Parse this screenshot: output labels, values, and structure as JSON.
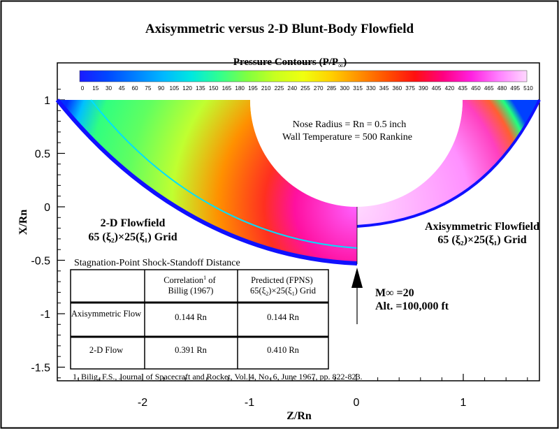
{
  "chart_data": {
    "type": "contour",
    "title": "Axisymmetric versus 2-D Blunt-Body Flowfield",
    "xlabel": "Z/Rn",
    "ylabel": "X/Rn",
    "xlim": [
      -2.8,
      1.72
    ],
    "ylim": [
      -1.72,
      1.25
    ],
    "x_ticks": [
      {
        "v": -2,
        "label": "-2"
      },
      {
        "v": -1,
        "label": "-1"
      },
      {
        "v": 0,
        "label": "0"
      },
      {
        "v": 1,
        "label": "1"
      }
    ],
    "y_ticks": [
      {
        "v": 1,
        "label": "1"
      },
      {
        "v": 0.5,
        "label": "0.5"
      },
      {
        "v": 0,
        "label": "0"
      },
      {
        "v": -0.5,
        "label": "-0.5"
      },
      {
        "v": -1,
        "label": "-1"
      },
      {
        "v": -1.5,
        "label": "-1.5"
      }
    ],
    "colorbar": {
      "title": "Pressure Contours (P/P",
      "title_sub": "∞",
      "title_close": ")",
      "min": 0,
      "max": 510,
      "tick_labels": [
        "0",
        "15",
        "30",
        "45",
        "60",
        "75",
        "90",
        "105",
        "120",
        "135",
        "150",
        "165",
        "180",
        "195",
        "210",
        "225",
        "240",
        "255",
        "270",
        "285",
        "300",
        "315",
        "330",
        "345",
        "360",
        "375",
        "390",
        "405",
        "420",
        "435",
        "450",
        "465",
        "480",
        "495",
        "510"
      ],
      "colors": [
        "#1a1aff",
        "#0048ff",
        "#0080ff",
        "#00b8ff",
        "#00e8e0",
        "#30ff90",
        "#80ff40",
        "#c8ff20",
        "#f0ff10",
        "#ffd000",
        "#ff9000",
        "#ff5000",
        "#ff1010",
        "#ff0080",
        "#ff20e0",
        "#ff80ff",
        "#ffd8ff"
      ]
    },
    "annotations": {
      "nose_radius": "Nose Radius = Rn = 0.5 inch",
      "wall_temperature": "Wall Temperature = 500 Rankine",
      "left_label_title": "2-D Flowfield",
      "left_label_grid": "65 (ξ₂)×25(ξ₁) Grid",
      "right_label_title": "Axisymmetric Flowfield",
      "right_label_grid": "65 (ξ₂)×25(ξ₁) Grid",
      "mach": "M∞ =20",
      "altitude": "Alt. =100,000 ft"
    },
    "table": {
      "title": "Stagnation-Point Shock-Standoff Distance",
      "headers": [
        "",
        "Correlation¹ of Billig (1967)",
        "Predicted (FPNS) 65(ξ₂)×25(ξ₁) Grid"
      ],
      "rows": [
        {
          "label": "Axisymmetric Flow",
          "values": [
            "0.144 Rn",
            "0.144 Rn"
          ]
        },
        {
          "label": "2-D Flow",
          "values": [
            "0.391 Rn",
            "0.410 Rn"
          ]
        }
      ]
    },
    "footnote": "1. Bilig, F.S., Journal of Spacecraft and Rocket, Vol. 4, No. 6, June 1967, pp. 822-823.",
    "flowfields": [
      {
        "name": "2-D Flowfield",
        "side": "left",
        "body_radius": 0.5,
        "shock_standoff": 0.41
      },
      {
        "name": "Axisymmetric Flowfield",
        "side": "right",
        "body_radius": 0.5,
        "shock_standoff": 0.144
      }
    ]
  }
}
